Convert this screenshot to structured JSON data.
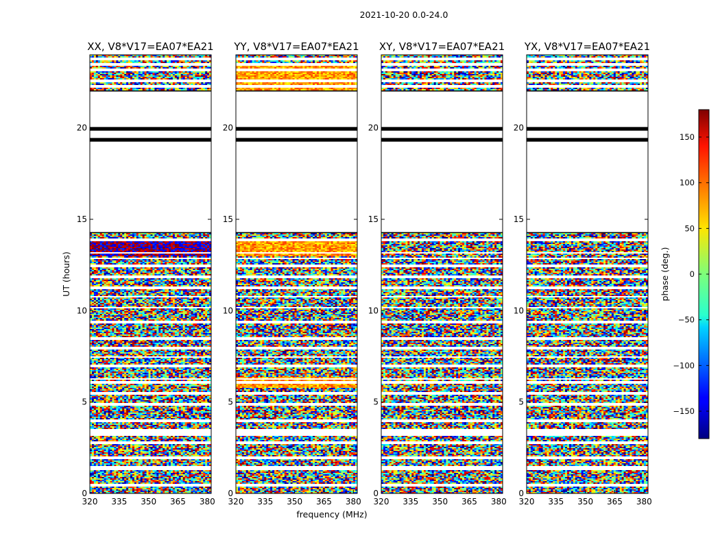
{
  "figure": {
    "suptitle": "2021-10-20 0.0-24.0"
  },
  "chart_data": {
    "type": "heatmap",
    "shared_xlabel": "frequency (MHz)",
    "shared_ylabel": "UT (hours)",
    "xlim": [
      320,
      382
    ],
    "ylim": [
      0,
      24
    ],
    "xticks": [
      320,
      335,
      350,
      365,
      380
    ],
    "yticks": [
      0,
      5,
      10,
      15,
      20
    ],
    "panels": [
      {
        "title": "XX, V8*V17=EA07*EA21",
        "polarization": "XX"
      },
      {
        "title": "YY, V8*V17=EA07*EA21",
        "polarization": "YY"
      },
      {
        "title": "XY, V8*V17=EA07*EA21",
        "polarization": "XY"
      },
      {
        "title": "YX, V8*V17=EA07*EA21",
        "polarization": "YX"
      }
    ],
    "colorbar": {
      "label": "phase (deg.)",
      "range": [
        -180,
        180
      ],
      "ticks": [
        150,
        100,
        50,
        0,
        -50,
        -100,
        -150
      ],
      "tick_labels": [
        "150",
        "100",
        "50",
        "0",
        "−50",
        "−100",
        "−150"
      ],
      "colormap": "jet"
    },
    "data_gaps_hours": [
      [
        3.55,
        3.6
      ],
      [
        3.6,
        3.2
      ],
      [
        14.3,
        22.05
      ]
    ],
    "black_bands_hours": [
      [
        19.85,
        20.0
      ],
      [
        19.25,
        19.45
      ]
    ]
  }
}
